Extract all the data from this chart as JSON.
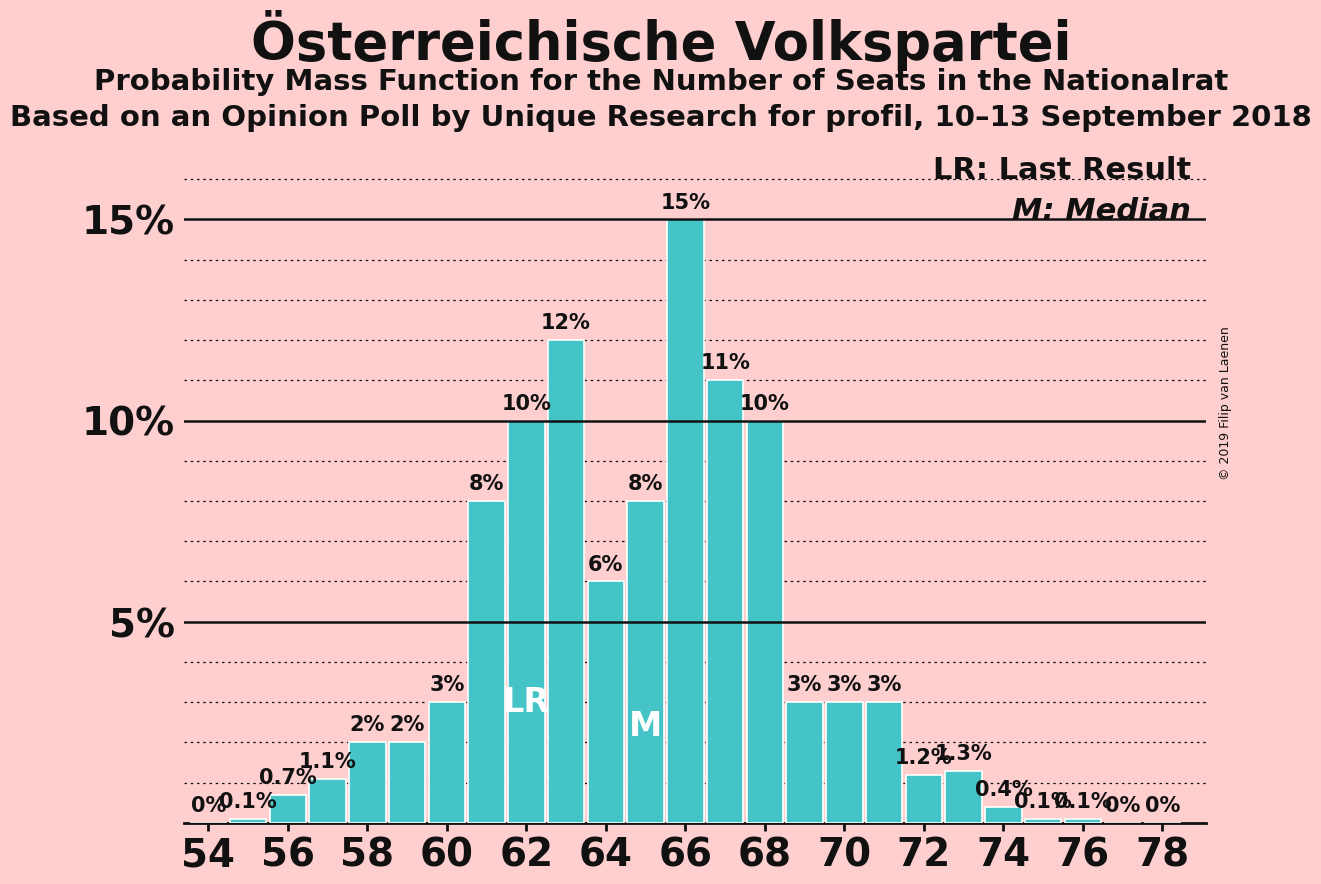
{
  "title": "Österreichische Volkspartei",
  "subtitle1": "Probability Mass Function for the Number of Seats in the Nationalrat",
  "subtitle2": "Based on an Opinion Poll by Unique Research for profil, 10–13 September 2018",
  "legend1": "LR: Last Result",
  "legend2": "M: Median",
  "copyright": "© 2019 Filip van Laenen",
  "seats": [
    54,
    55,
    56,
    57,
    58,
    59,
    60,
    61,
    62,
    63,
    64,
    65,
    66,
    67,
    68,
    69,
    70,
    71,
    72,
    73,
    74,
    75,
    76,
    77,
    78
  ],
  "probabilities": [
    0.0,
    0.1,
    0.7,
    1.1,
    2.0,
    2.0,
    3.0,
    8.0,
    10.0,
    12.0,
    6.0,
    8.0,
    15.0,
    11.0,
    10.0,
    3.0,
    3.0,
    3.0,
    1.2,
    1.3,
    0.4,
    0.1,
    0.1,
    0.0,
    0.0
  ],
  "bar_color": "#45C4C8",
  "bar_edge_color": "white",
  "background_color": "#FFCECE",
  "text_color": "#111111",
  "lr_seat": 62,
  "median_seat": 65,
  "lr_label": "LR",
  "median_label": "M",
  "ylim_max": 17.0,
  "solid_line_y": [
    5.0,
    10.0,
    15.0
  ],
  "dotted_line_y": [
    1.0,
    2.0,
    3.0,
    4.0,
    6.0,
    7.0,
    8.0,
    9.0,
    11.0,
    12.0,
    13.0,
    14.0,
    16.0
  ],
  "ytick_positions": [
    5.0,
    10.0,
    15.0
  ],
  "ytick_labels": [
    "5%",
    "10%",
    "15%"
  ],
  "title_fontsize": 38,
  "subtitle_fontsize": 21,
  "axis_tick_fontsize": 28,
  "bar_label_fontsize": 15,
  "annotation_fontsize": 24,
  "legend_fontsize": 22
}
